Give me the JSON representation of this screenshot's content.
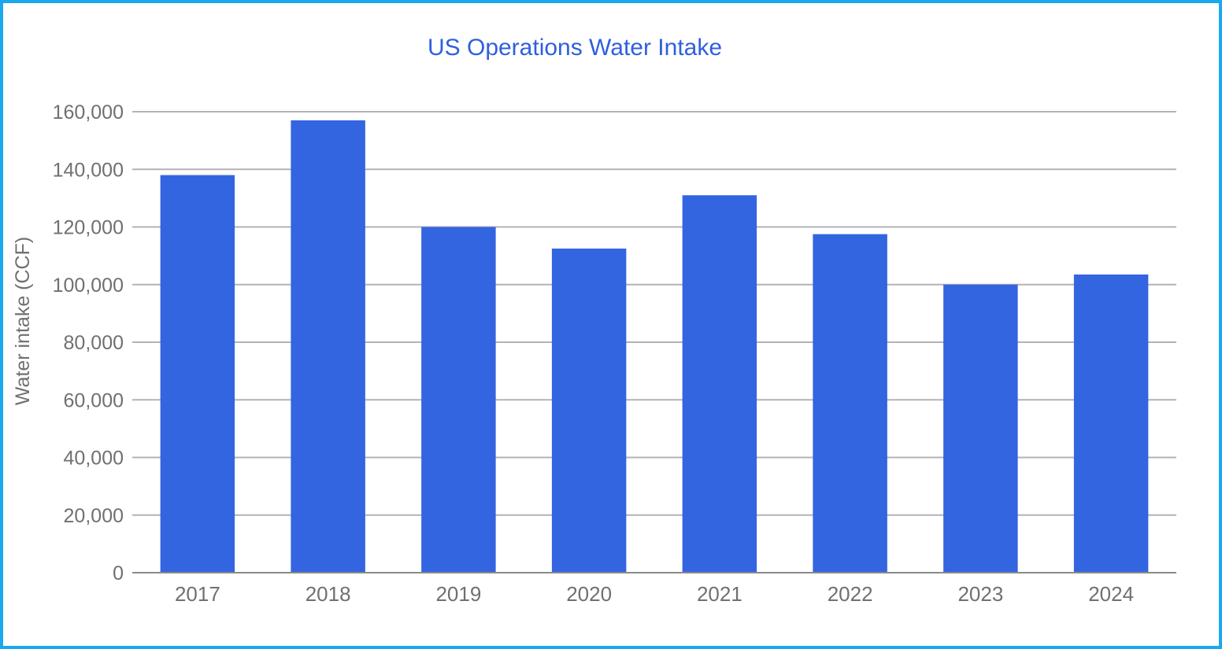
{
  "chart_data": {
    "type": "bar",
    "title": "US Operations Water Intake",
    "xlabel": "",
    "ylabel": "Water intake (CCF)",
    "categories": [
      "2017",
      "2018",
      "2019",
      "2020",
      "2021",
      "2022",
      "2023",
      "2024"
    ],
    "values": [
      138000,
      157000,
      120000,
      112500,
      131000,
      117500,
      100000,
      103500
    ],
    "ylim": [
      0,
      160000
    ],
    "yticks": [
      0,
      20000,
      40000,
      60000,
      80000,
      100000,
      120000,
      140000,
      160000
    ],
    "ytick_labels": [
      "0",
      "20,000",
      "40,000",
      "60,000",
      "80,000",
      "100,000",
      "120,000",
      "140,000",
      "160,000"
    ],
    "grid": true,
    "legend": "none",
    "colors": {
      "bar": "#3465e0",
      "gridline": "#b3b3b3",
      "axis": "#8a8a8a",
      "text": "#707070",
      "title": "#2f5fde",
      "border": "#19a9ec"
    }
  }
}
